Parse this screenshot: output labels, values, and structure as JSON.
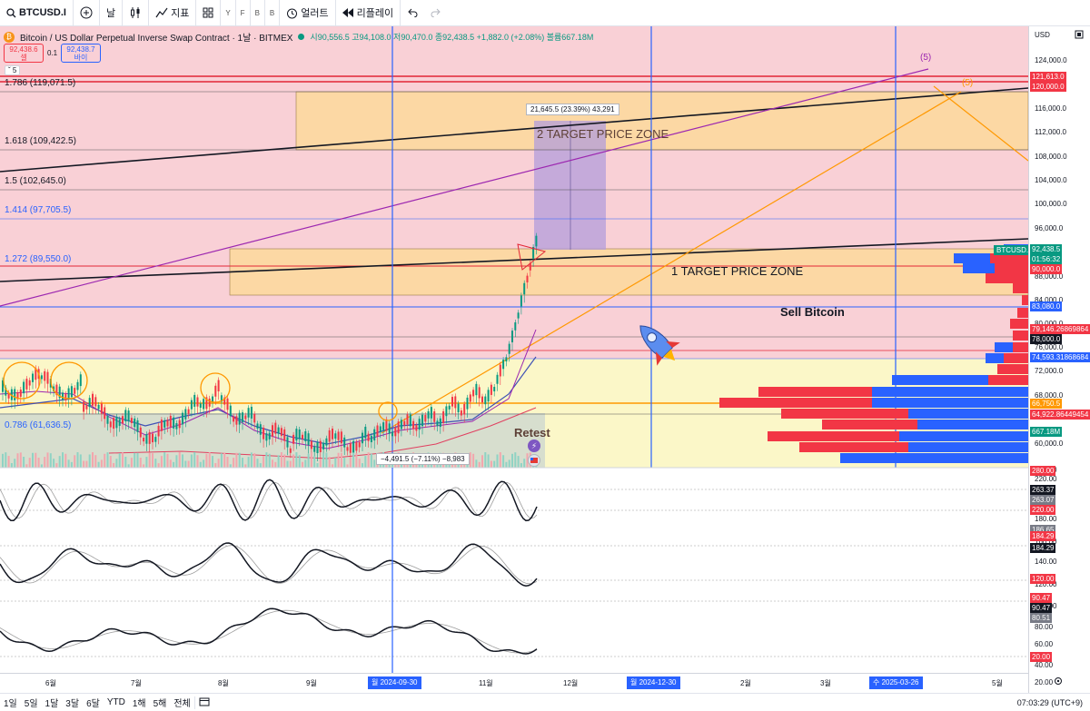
{
  "toolbar": {
    "symbol": "BTCUSD.I",
    "interval": "날",
    "indicators": "지표",
    "layout_letters": [
      "Y",
      "F",
      "B",
      "B"
    ],
    "alert": "얼러트",
    "replay": "리플레이"
  },
  "legend": {
    "title": "Bitcoin / US Dollar Perpetual Inverse Swap Contract · 1날 · BITMEX",
    "ohlc": "시90,556.5 고94,108.0 저90,470.0 종92,438.5 +1,882.0 (+2.08%) 볼륨667.18M",
    "sell_price": "92,438.6",
    "sell_label": "셀",
    "spread": "0.1",
    "buy_price": "92,438.7",
    "buy_label": "바이",
    "collapse": "5"
  },
  "fib_levels": [
    {
      "label": "1.786 (119,071.5)",
      "color": "#131722"
    },
    {
      "label": "1.618 (109,422.5)",
      "color": "#131722"
    },
    {
      "label": "1.5 (102,645.0)",
      "color": "#131722"
    },
    {
      "label": "1.414 (97,705.5)",
      "color": "#2962ff"
    },
    {
      "label": "1.272 (89,550.0)",
      "color": "#2962ff"
    },
    {
      "label": "0.786 (61,636.5)",
      "color": "#2962ff"
    }
  ],
  "annotations": {
    "zone2": "2  TARGET PRICE ZONE",
    "zone1": "1  TARGET PRICE ZONE",
    "sell": "Sell Bitcoin",
    "retest": "Retest",
    "wave5_a": "(5)",
    "wave5_b": "(5)",
    "measure_up": "21,645.5 (23.39%) 43,291",
    "measure_down": "−4,491.5 (−7.11%) −8,983",
    "symbol_tag": "BTCUSD.P"
  },
  "price_axis": {
    "currency": "USD",
    "ticks": [
      "124,000.0",
      "116,000.0",
      "112,000.0",
      "108,000.0",
      "104,000.0",
      "100,000.0",
      "96,000.0",
      "88,000.0",
      "84,000.0",
      "80,000.0",
      "76,000.0",
      "72,000.0",
      "68,000.0",
      "60,000.0"
    ],
    "labels": [
      {
        "text": "121,613.0",
        "bg": "#f23645"
      },
      {
        "text": "120,000.0",
        "bg": "#f23645"
      },
      {
        "text": "92,438.5",
        "bg": "#089981"
      },
      {
        "text": "01:56:32",
        "bg": "#089981"
      },
      {
        "text": "90,000.0",
        "bg": "#f23645"
      },
      {
        "text": "83,080.0",
        "bg": "#2962ff"
      },
      {
        "text": "79,146.26869864",
        "bg": "#f23645"
      },
      {
        "text": "78,000.0",
        "bg": "#131722"
      },
      {
        "text": "74,593.31868684",
        "bg": "#2962ff"
      },
      {
        "text": "66,750.5",
        "bg": "#ff9800"
      },
      {
        "text": "64,922.86449454",
        "bg": "#f23645"
      },
      {
        "text": "667.18M",
        "bg": "#089981"
      }
    ],
    "osc_ticks": [
      "280.00",
      "220.00",
      "180.00",
      "160.00",
      "140.00",
      "120.00",
      "100.00",
      "80.00",
      "60.00",
      "40.00",
      "20.00"
    ],
    "osc_labels": [
      {
        "text": "280.00",
        "bg": "#f23645"
      },
      {
        "text": "263.37",
        "bg": "#131722"
      },
      {
        "text": "263.07",
        "bg": "#787b86"
      },
      {
        "text": "220.00",
        "bg": "#f23645"
      },
      {
        "text": "186.65",
        "bg": "#787b86"
      },
      {
        "text": "184.29",
        "bg": "#f23645"
      },
      {
        "text": "184.29",
        "bg": "#131722"
      },
      {
        "text": "120.00",
        "bg": "#f23645"
      },
      {
        "text": "90.47",
        "bg": "#f23645"
      },
      {
        "text": "90.47",
        "bg": "#131722"
      },
      {
        "text": "80.51",
        "bg": "#787b86"
      },
      {
        "text": "20.00",
        "bg": "#f23645"
      }
    ]
  },
  "time_axis": {
    "months": [
      "6월",
      "7월",
      "8월",
      "9월",
      "11월",
      "12월",
      "2월",
      "3월",
      "5월"
    ],
    "flags": [
      "월 2024-09-30",
      "월 2024-12-30",
      "수 2025-03-26"
    ]
  },
  "bottom": {
    "ranges": [
      "1일",
      "5일",
      "1달",
      "3달",
      "6달",
      "YTD",
      "1해",
      "5해",
      "전체"
    ],
    "clock": "07:03:29 (UTC+9)"
  },
  "colors": {
    "up": "#089981",
    "down": "#f23645",
    "accent": "#2962ff",
    "zone": "#f8c07a",
    "target_box": "#b39ddb"
  }
}
